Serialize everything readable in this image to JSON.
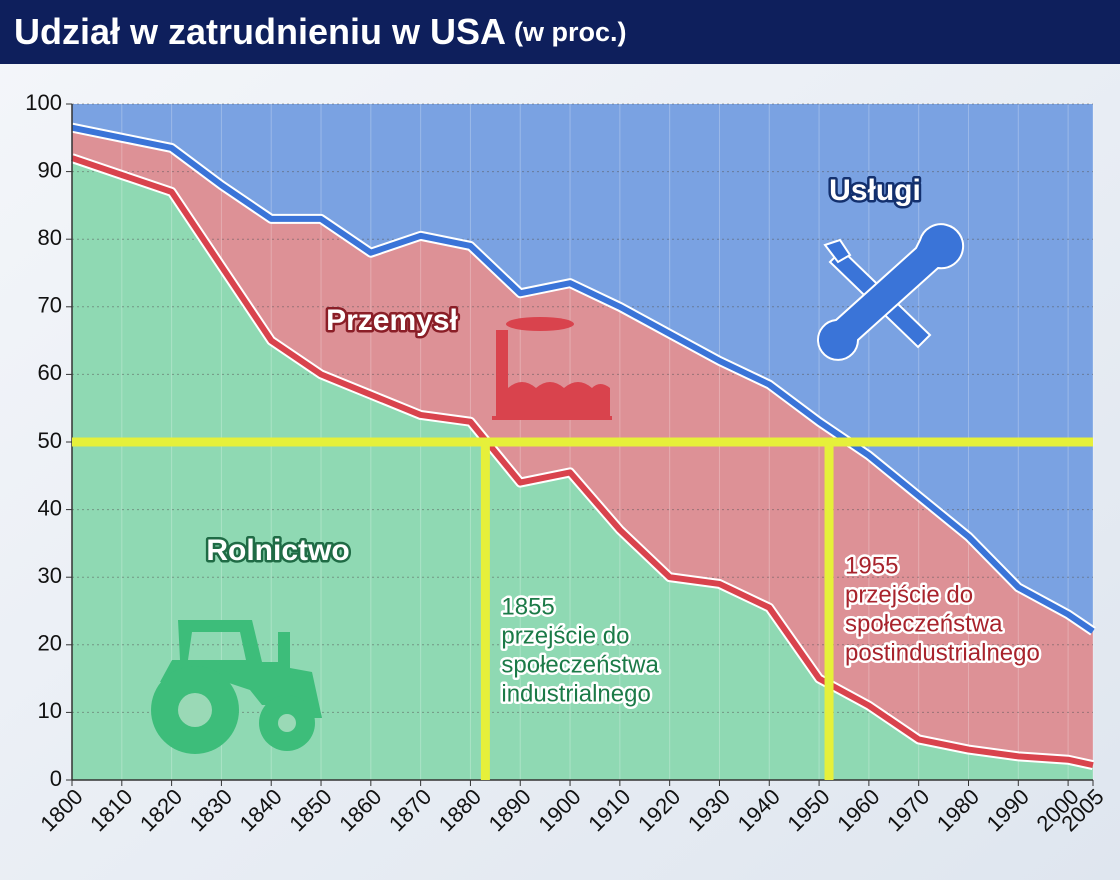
{
  "chart_data": {
    "type": "stacked-area",
    "title": "Udział w zatrudnieniu w USA",
    "subtitle": "(w proc.)",
    "x": [
      1800,
      1810,
      1820,
      1830,
      1840,
      1850,
      1860,
      1870,
      1880,
      1890,
      1900,
      1910,
      1920,
      1930,
      1940,
      1950,
      1960,
      1970,
      1980,
      1990,
      2000,
      2005
    ],
    "series": [
      {
        "name": "Rolnictwo",
        "color": "#8fd9b3",
        "line_color": "#d9434d",
        "values": [
          92,
          89.5,
          87,
          76,
          65,
          60,
          57,
          54,
          53,
          44,
          45.5,
          37,
          30,
          29,
          25.5,
          15,
          11,
          6,
          4.5,
          3.5,
          3,
          2.2
        ]
      },
      {
        "name": "Przemysł",
        "color": "#dd9196",
        "line_color": "#3a74d8",
        "values": [
          4.5,
          5.5,
          6.5,
          12,
          18,
          23,
          21,
          26.5,
          26,
          28,
          28,
          33,
          36,
          33,
          33,
          38,
          37,
          36,
          31.5,
          25,
          21.5,
          19.8
        ]
      },
      {
        "name": "Usługi",
        "color": "#7aa2e2",
        "values": [
          3.5,
          5,
          6.5,
          12,
          17,
          17,
          22,
          19.5,
          21,
          28,
          26.5,
          30,
          34,
          38,
          41.5,
          47,
          52,
          58,
          64,
          71.5,
          75.5,
          78
        ]
      }
    ],
    "xlim": [
      1800,
      2005
    ],
    "xticks": [
      1800,
      1810,
      1820,
      1830,
      1840,
      1850,
      1860,
      1870,
      1880,
      1890,
      1900,
      1910,
      1920,
      1930,
      1940,
      1950,
      1960,
      1970,
      1980,
      1990,
      2000,
      2005
    ],
    "ylim": [
      0,
      100
    ],
    "yticks": [
      0,
      10,
      20,
      30,
      40,
      50,
      60,
      70,
      80,
      90,
      100
    ],
    "grid": true,
    "threshold": 50,
    "annotations": [
      {
        "x": 1883,
        "lines": [
          "1855",
          "przejście do",
          "społeczeństwa",
          "industrialnego"
        ]
      },
      {
        "x": 1952,
        "lines": [
          "1955",
          "przejście do",
          "społeczeństwa",
          "postindustrialnego"
        ]
      }
    ]
  }
}
